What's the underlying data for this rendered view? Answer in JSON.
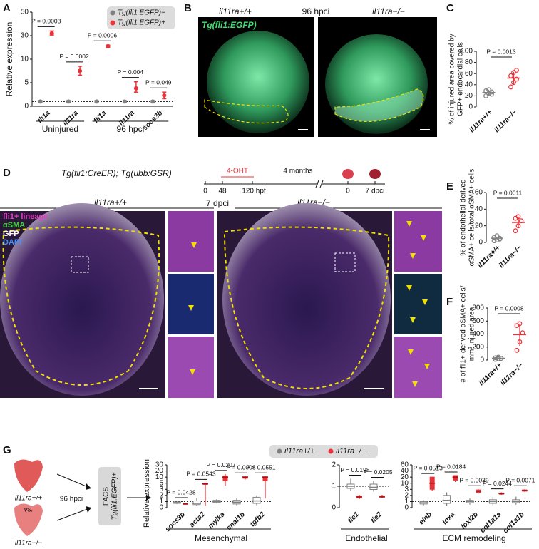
{
  "figure": {
    "panel_labels": [
      "A",
      "B",
      "C",
      "D",
      "E",
      "F",
      "G"
    ],
    "panel_b": {
      "overlay": "Tg(fli1:EGFP)",
      "left": "il11ra+/+",
      "time": "96 hpci",
      "right": "il11ra−/−"
    },
    "panel_d": {
      "title": "Tg(fli1:CreER); Tg(ubb:GSR)",
      "treatment": "4-OHT",
      "timeline": [
        "0",
        "48",
        "120 hpf",
        "4 months",
        "0",
        "7 dpci"
      ],
      "left": "il11ra+/+",
      "time": "7 dpci",
      "right": "il11ra−/−",
      "stains": [
        {
          "label": "fli1+ lineage",
          "color": "#e040c0"
        },
        {
          "label": "αSMA",
          "color": "#40d040"
        },
        {
          "label": "GFP",
          "color": "#ffffff"
        },
        {
          "label": "DAPI",
          "color": "#4090ff"
        }
      ]
    },
    "panel_g": {
      "top": "il11ra+/+",
      "vs": "vs.",
      "time": "96 hpci",
      "bottom": "il11ra−/−",
      "facs": [
        "FACS",
        "Tg(fli1:EGFP)+"
      ]
    }
  },
  "chart_data": [
    {
      "type": "errorbar",
      "ylabel": "Relative expression",
      "ylim": [
        0,
        50
      ],
      "yticks": [
        0,
        5,
        10,
        30,
        50
      ],
      "broken_axis": true,
      "hline": 1,
      "legend": "upper right",
      "groups": [
        {
          "label": "Uninjured",
          "categories": [
            "fli1a",
            "il11ra"
          ]
        },
        {
          "label": "96 hpci",
          "categories": [
            "fli1a",
            "il11ra",
            "socs3b"
          ]
        }
      ],
      "series": [
        {
          "name": "Tg(fli1:EGFP)−",
          "color": "#808080",
          "values": [
            1,
            1,
            1,
            1,
            1
          ],
          "low": [
            0.8,
            0.8,
            0.8,
            0.8,
            0.8
          ],
          "high": [
            1.2,
            1.2,
            1.2,
            1.2,
            1.2
          ]
        },
        {
          "name": "Tg(fli1:EGFP)+",
          "color": "#e8333a",
          "values": [
            32,
            7.5,
            21,
            3.8,
            2.3
          ],
          "low": [
            30.5,
            6.6,
            20,
            3,
            1.6
          ],
          "high": [
            34,
            8.5,
            22,
            5.2,
            3
          ]
        }
      ],
      "annotations": [
        "P = 0.0003",
        "P = 0.0002",
        "P = 0.0006",
        "P = 0.004",
        "P = 0.049"
      ]
    },
    {
      "type": "strip",
      "ylabel": [
        "% of injured area covered by",
        "GFP+ endocardial cells"
      ],
      "categories": [
        "il11ra+/+",
        "il11ra−/−"
      ],
      "colors": [
        "#808080",
        "#e8333a"
      ],
      "points": [
        [
          20,
          24,
          27,
          29,
          31,
          23
        ],
        [
          36,
          44,
          50,
          56,
          62,
          66
        ]
      ],
      "mean": [
        26,
        52
      ],
      "sd": [
        5,
        11
      ],
      "ylim": [
        0,
        100
      ],
      "yticks": [
        0,
        20,
        40,
        60,
        80,
        100
      ],
      "annotations": [
        "P = 0.0013"
      ]
    },
    {
      "type": "strip",
      "ylabel": [
        "% of endothelial-derived",
        "αSMA+ cells/total αSMA+ cells"
      ],
      "categories": [
        "il11ra+/+",
        "il11ra−/−"
      ],
      "colors": [
        "#808080",
        "#e8333a"
      ],
      "points": [
        [
          2,
          3,
          4,
          6,
          8,
          5
        ],
        [
          14,
          20,
          26,
          29,
          31
        ]
      ],
      "mean": [
        5,
        24
      ],
      "sd": [
        2,
        7
      ],
      "ylim": [
        0,
        60
      ],
      "yticks": [
        0,
        20,
        40,
        60
      ],
      "annotations": [
        "P = 0.0011"
      ]
    },
    {
      "type": "strip",
      "ylabel": [
        "# of fli1+-derived αSMA+ cells/",
        "mm² injured area"
      ],
      "categories": [
        "il11ra+/+",
        "il11ra−/−"
      ],
      "colors": [
        "#808080",
        "#e8333a"
      ],
      "points": [
        [
          10,
          20,
          25,
          35,
          45
        ],
        [
          150,
          280,
          420,
          530,
          560
        ]
      ],
      "mean": [
        27,
        390
      ],
      "sd": [
        13,
        170
      ],
      "ylim": [
        0,
        800
      ],
      "yticks": [
        0,
        200,
        400,
        600,
        800
      ],
      "annotations": [
        "P = 0.0008"
      ]
    },
    {
      "type": "box",
      "ylabel": "Relative expression",
      "legend": "top",
      "groups": [
        {
          "label": "Mesenchymal",
          "categories": [
            "socs3b",
            "acta2",
            "mylka",
            "snai1b",
            "tgfb2"
          ],
          "ylim": [
            0,
            30
          ],
          "yticks": [
            0,
            1,
            2,
            3,
            5,
            10,
            20,
            30
          ],
          "broken_axis": true,
          "hline": 1
        },
        {
          "label": "Endothelial",
          "categories": [
            "tie1",
            "tie2"
          ],
          "ylim": [
            0,
            2
          ],
          "yticks": [
            0,
            1,
            2
          ],
          "broken_axis": false,
          "hline": 1
        },
        {
          "label": "ECM remodeling",
          "categories": [
            "elnb",
            "loxa",
            "loxl2b",
            "col1a1a",
            "col1a1b"
          ],
          "ylim": [
            0,
            60
          ],
          "yticks": [
            0,
            1,
            2,
            3,
            10,
            20,
            40,
            60
          ],
          "broken_axis": true,
          "hline": 1
        }
      ],
      "series": [
        {
          "name": "il11ra+/+",
          "color": "#808080",
          "min": [
            0.6,
            0.3,
            0.7,
            0.4,
            0.4,
            0.8,
            0.75,
            0.4,
            0.3,
            0.5,
            0.3,
            0.5
          ],
          "q1": [
            0.7,
            0.5,
            0.85,
            0.6,
            0.7,
            0.9,
            0.85,
            0.6,
            0.7,
            0.8,
            0.7,
            0.8
          ],
          "median": [
            0.8,
            0.7,
            1.0,
            0.9,
            1.1,
            1.0,
            0.95,
            0.8,
            1.2,
            1.0,
            1.0,
            1.0
          ],
          "q3": [
            0.95,
            1.1,
            1.2,
            1.2,
            1.7,
            1.1,
            1.1,
            1.0,
            2.0,
            1.2,
            1.3,
            1.3
          ],
          "max": [
            1.0,
            1.6,
            1.4,
            1.5,
            2.0,
            1.35,
            1.25,
            1.2,
            2.5,
            1.5,
            1.8,
            1.8
          ]
        },
        {
          "name": "il11ra−/−",
          "color": "#e8333a",
          "min": [
            0.5,
            0.3,
            4,
            8,
            1.5,
            0.4,
            0.45,
            2.8,
            12,
            2.3,
            2.1,
            2.6
          ],
          "q1": [
            0.55,
            4.6,
            7,
            9,
            7,
            0.45,
            0.5,
            3,
            15,
            2.5,
            2.2,
            2.7
          ],
          "median": [
            0.6,
            4.8,
            10,
            10,
            10,
            0.5,
            0.5,
            10,
            20,
            2.7,
            2.3,
            2.8
          ],
          "q3": [
            0.65,
            5,
            12,
            10.5,
            10.5,
            0.55,
            0.55,
            20,
            25,
            2.9,
            2.4,
            2.9
          ],
          "max": [
            0.7,
            5.2,
            15,
            11,
            11,
            0.6,
            0.6,
            20,
            25,
            3,
            2.5,
            3
          ]
        }
      ],
      "annotations": [
        "P = 0.0428",
        "P = 0.0543",
        "P = 0.0207",
        "P = 0.0008",
        "P = 0.0551",
        "P = 0.0198",
        "P = 0.0205",
        "P = 0.0513",
        "P = 0.0184",
        "P = 0.0039",
        "P = 0.0244",
        "P = 0.0071"
      ]
    }
  ]
}
